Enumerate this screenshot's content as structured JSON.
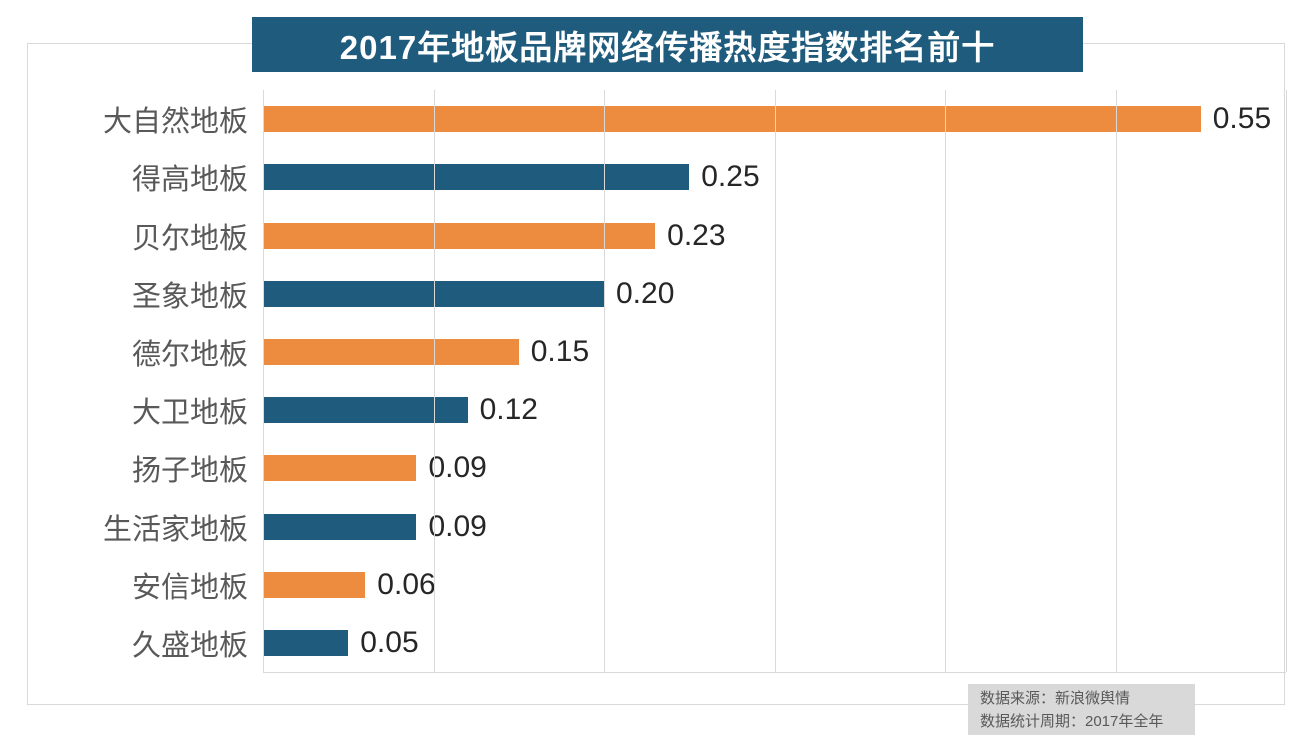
{
  "chart_data": {
    "type": "bar",
    "orientation": "horizontal",
    "title": "2017年地板品牌网络传播热度指数排名前十",
    "categories": [
      "大自然地板",
      "得高地板",
      "贝尔地板",
      "圣象地板",
      "德尔地板",
      "大卫地板",
      "扬子地板",
      "生活家地板",
      "安信地板",
      "久盛地板"
    ],
    "values": [
      0.55,
      0.25,
      0.23,
      0.2,
      0.15,
      0.12,
      0.09,
      0.09,
      0.06,
      0.05
    ],
    "value_labels": [
      "0.55",
      "0.25",
      "0.23",
      "0.20",
      "0.15",
      "0.12",
      "0.09",
      "0.09",
      "0.06",
      "0.05"
    ],
    "xlabel": "",
    "ylabel": "",
    "xlim": [
      0,
      0.6
    ],
    "grid_step": 0.1,
    "grid": true,
    "legend": "none",
    "bar_colors_alternating": [
      "#ED8C3F",
      "#1F5B7C"
    ]
  },
  "footer": {
    "lines": [
      "数据来源：新浪微舆情",
      "数据统计周期：2017年全年"
    ]
  },
  "colors": {
    "title_bg": "#1F5B7C",
    "title_fg": "#FFFFFF",
    "bar_orange": "#ED8C3F",
    "bar_teal": "#1F5B7C",
    "gridline": "#D9D9D9",
    "frame_border": "#D9D9D9",
    "category_label": "#595959",
    "value_label": "#262626",
    "footer_bg": "#D9D9D9",
    "footer_fg": "#595959"
  }
}
